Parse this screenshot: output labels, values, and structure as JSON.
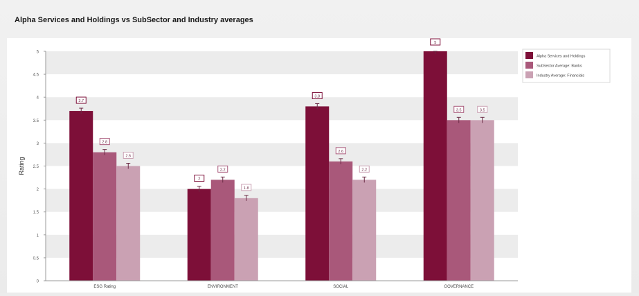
{
  "chart_data": {
    "type": "bar",
    "title": "Alpha Services and Holdings vs SubSector and Industry averages",
    "xlabel": "",
    "ylabel": "Rating",
    "ylim": [
      0,
      5
    ],
    "yticks": [
      "0",
      "0.5",
      "1",
      "1.5",
      "2",
      "2.5",
      "3",
      "3.5",
      "4",
      "4.5",
      "5"
    ],
    "categories": [
      "ESG Rating",
      "ENVIRONMENT",
      "SOCIAL",
      "GOVERNANCE"
    ],
    "series": [
      {
        "name": "Alpha Services and Holdings",
        "color": "#7d0f38",
        "values": [
          3.7,
          2,
          3.8,
          5
        ],
        "labels": [
          "3.7",
          "2",
          "3.8",
          "5"
        ]
      },
      {
        "name": "SubSector Average: Banks",
        "color": "#a9587a",
        "values": [
          2.8,
          2.2,
          2.6,
          3.5
        ],
        "labels": [
          "2.8",
          "2.2",
          "2.6",
          "3.5"
        ]
      },
      {
        "name": "Industry Average: Financials",
        "color": "#caa1b3",
        "values": [
          2.5,
          1.8,
          2.2,
          3.5
        ],
        "labels": [
          "2.5",
          "1.8",
          "2.2",
          "3.5"
        ]
      }
    ],
    "grid": true,
    "legend": "top-right"
  }
}
